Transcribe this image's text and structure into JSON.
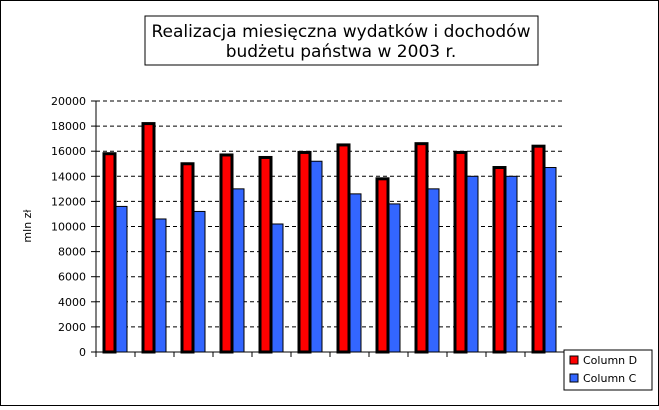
{
  "chart_data": {
    "type": "bar",
    "title_lines": [
      "Realizacja miesięczna wydatków i dochodów",
      "budżetu państwa w 2003 r."
    ],
    "ylabel": "mln zł",
    "xlabel": "",
    "ylim": [
      0,
      20000
    ],
    "yticks": [
      0,
      2000,
      4000,
      6000,
      8000,
      10000,
      12000,
      14000,
      16000,
      18000,
      20000
    ],
    "grid": "dashed horizontal",
    "legend_position": "right",
    "categories": [
      "",
      "",
      "",
      "",
      "",
      "",
      "",
      "",
      "",
      "",
      "",
      ""
    ],
    "series": [
      {
        "name": "Column D",
        "color": "#ff0000",
        "values": [
          15800,
          18200,
          15000,
          15700,
          15500,
          15900,
          16500,
          13800,
          16600,
          15900,
          14700,
          16400
        ]
      },
      {
        "name": "Column C",
        "color": "#3366ff",
        "values": [
          11600,
          10600,
          11200,
          13000,
          10200,
          15200,
          12600,
          11800,
          13000,
          14000,
          14000,
          14700
        ]
      }
    ]
  }
}
